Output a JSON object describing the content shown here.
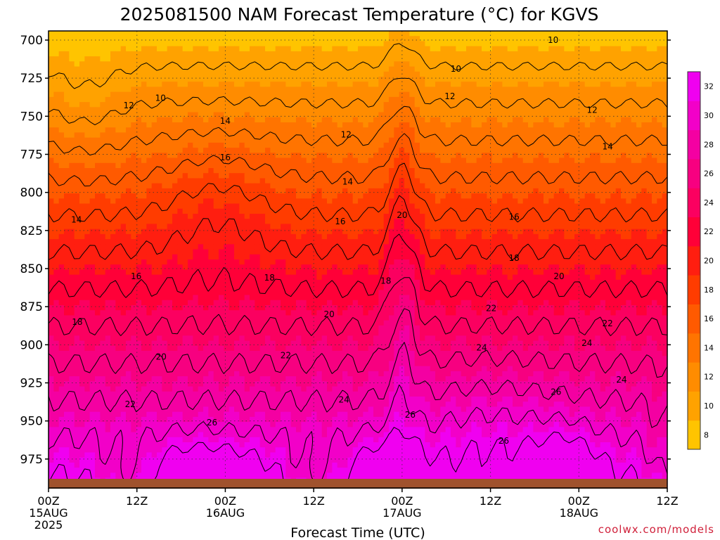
{
  "title": "2025081500 NAM Forecast Temperature (°C) for KGVS",
  "credit": "coolwx.com/models",
  "chart_data": {
    "type": "heatmap",
    "title": "2025081500 NAM Forecast Temperature (°C) for KGVS",
    "xlabel": "Forecast Time (UTC)",
    "ylabel": "",
    "x_ticks": [
      {
        "h": 0,
        "lines": [
          "00Z",
          "15AUG",
          "2025"
        ]
      },
      {
        "h": 12,
        "lines": [
          "12Z"
        ]
      },
      {
        "h": 24,
        "lines": [
          "00Z",
          "16AUG"
        ]
      },
      {
        "h": 36,
        "lines": [
          "12Z"
        ]
      },
      {
        "h": 48,
        "lines": [
          "00Z",
          "17AUG"
        ]
      },
      {
        "h": 60,
        "lines": [
          "12Z"
        ]
      },
      {
        "h": 72,
        "lines": [
          "00Z",
          "18AUG"
        ]
      },
      {
        "h": 84,
        "lines": [
          "12Z"
        ]
      }
    ],
    "xlim_hours": [
      0,
      84
    ],
    "y_ticks": [
      700,
      725,
      750,
      775,
      800,
      825,
      850,
      875,
      900,
      925,
      950,
      975
    ],
    "ylim_hpa": [
      694,
      994
    ],
    "ground_level_hpa": 988,
    "colorbar": {
      "ticks": [
        8,
        10,
        12,
        14,
        16,
        18,
        20,
        22,
        24,
        26,
        28,
        30,
        32
      ],
      "colors": [
        "#ffc400",
        "#ffa200",
        "#ff8c00",
        "#ff7400",
        "#ff5a00",
        "#ff3c00",
        "#ff1e10",
        "#ff0038",
        "#fb0060",
        "#f70080",
        "#f400a2",
        "#f200c8",
        "#f000f0"
      ]
    },
    "contour_labels": [
      {
        "v": 10,
        "h": 15.2,
        "p": 738
      },
      {
        "v": 10,
        "h": 55.3,
        "p": 719
      },
      {
        "v": 10,
        "h": 68.5,
        "p": 700
      },
      {
        "v": 12,
        "h": 10.9,
        "p": 743
      },
      {
        "v": 12,
        "h": 40.4,
        "p": 762
      },
      {
        "v": 12,
        "h": 54.5,
        "p": 737
      },
      {
        "v": 12,
        "h": 73.8,
        "p": 746
      },
      {
        "v": 14,
        "h": 3.8,
        "p": 818
      },
      {
        "v": 14,
        "h": 24.0,
        "p": 753
      },
      {
        "v": 14,
        "h": 40.6,
        "p": 793
      },
      {
        "v": 14,
        "h": 75.9,
        "p": 770
      },
      {
        "v": 16,
        "h": 11.9,
        "p": 855
      },
      {
        "v": 16,
        "h": 24.0,
        "p": 777
      },
      {
        "v": 16,
        "h": 39.6,
        "p": 819
      },
      {
        "v": 16,
        "h": 63.2,
        "p": 816
      },
      {
        "v": 18,
        "h": 3.9,
        "p": 885
      },
      {
        "v": 18,
        "h": 30.0,
        "p": 856
      },
      {
        "v": 18,
        "h": 45.8,
        "p": 858
      },
      {
        "v": 18,
        "h": 63.2,
        "p": 843
      },
      {
        "v": 20,
        "h": 15.3,
        "p": 908
      },
      {
        "v": 20,
        "h": 38.1,
        "p": 880
      },
      {
        "v": 20,
        "h": 48.0,
        "p": 815
      },
      {
        "v": 20,
        "h": 69.3,
        "p": 855
      },
      {
        "v": 22,
        "h": 11.1,
        "p": 939
      },
      {
        "v": 22,
        "h": 32.2,
        "p": 907
      },
      {
        "v": 22,
        "h": 60.1,
        "p": 876
      },
      {
        "v": 22,
        "h": 75.9,
        "p": 886
      },
      {
        "v": 24,
        "h": 40.1,
        "p": 936
      },
      {
        "v": 24,
        "h": 58.8,
        "p": 902
      },
      {
        "v": 24,
        "h": 73.1,
        "p": 899
      },
      {
        "v": 24,
        "h": 77.8,
        "p": 923
      },
      {
        "v": 26,
        "h": 22.2,
        "p": 951
      },
      {
        "v": 26,
        "h": 49.1,
        "p": 946
      },
      {
        "v": 26,
        "h": 61.8,
        "p": 963
      },
      {
        "v": 26,
        "h": 68.9,
        "p": 931
      }
    ],
    "grid": true
  }
}
